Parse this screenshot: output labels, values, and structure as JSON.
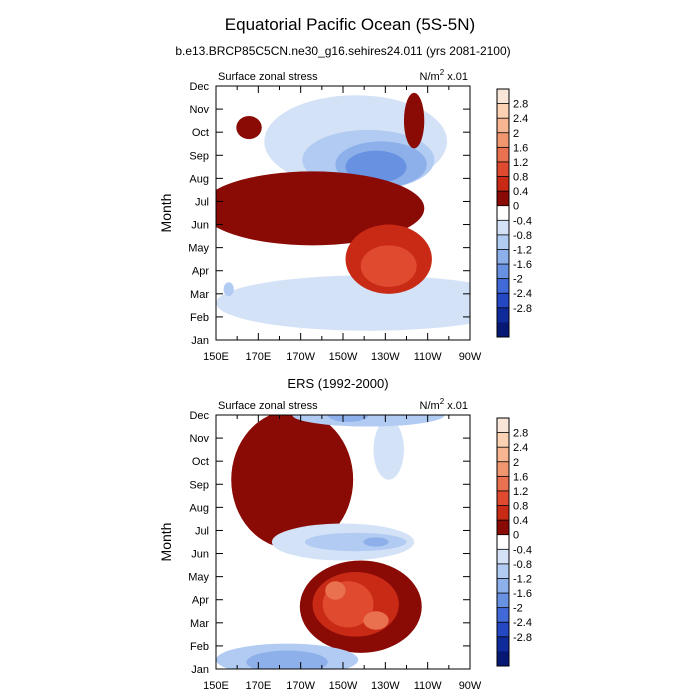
{
  "figure": {
    "title": "Equatorial Pacific Ocean (5S-5N)",
    "subtitle": "b.e13.BRCP85C5CN.ne30_g16.sehires24.011 (yrs 2081-2100)"
  },
  "chart_data": [
    {
      "type": "heatmap",
      "panel_title": "",
      "left_label": "Surface zonal stress",
      "right_label_main": "N/m",
      "right_label_sup": "2",
      "right_label_tail": " x.01",
      "ylabel": "Month",
      "xlabel": "",
      "x_ticks": [
        "150E",
        "170E",
        "170W",
        "150W",
        "130W",
        "110W",
        "90W"
      ],
      "y_ticks": [
        "Jan",
        "Feb",
        "Mar",
        "Apr",
        "May",
        "Jun",
        "Jul",
        "Aug",
        "Sep",
        "Oct",
        "Nov",
        "Dec"
      ],
      "x_range": [
        "150E",
        "90W"
      ],
      "y_range": [
        "Jan",
        "Dec"
      ],
      "features": [
        {
          "kind": "bg",
          "value": 0.2
        },
        {
          "kind": "blob",
          "value": -0.2,
          "cx": 60,
          "cy": 1.6,
          "rx": 60,
          "ry": 1.2
        },
        {
          "kind": "blob",
          "value": -0.2,
          "cx": 55,
          "cy": 8.6,
          "rx": 36,
          "ry": 2.0
        },
        {
          "kind": "blob",
          "value": -0.6,
          "cx": 60,
          "cy": 7.8,
          "rx": 26,
          "ry": 1.3
        },
        {
          "kind": "blob",
          "value": -1.0,
          "cx": 65,
          "cy": 7.6,
          "rx": 18,
          "ry": 1.0
        },
        {
          "kind": "blob",
          "value": -1.4,
          "cx": 63,
          "cy": 7.5,
          "rx": 12,
          "ry": 0.7
        },
        {
          "kind": "blob",
          "value": 0.6,
          "cx": 38,
          "cy": 5.7,
          "rx": 44,
          "ry": 1.6
        },
        {
          "kind": "blob",
          "value": 1.0,
          "cx": 68,
          "cy": 3.5,
          "rx": 17,
          "ry": 1.5
        },
        {
          "kind": "blob",
          "value": 1.4,
          "cx": 68,
          "cy": 3.2,
          "rx": 11,
          "ry": 0.9
        },
        {
          "kind": "blob",
          "value": 0.6,
          "cx": 78,
          "cy": 9.5,
          "rx": 4,
          "ry": 1.2
        },
        {
          "kind": "blob",
          "value": 0.6,
          "cx": 13,
          "cy": 9.2,
          "rx": 5,
          "ry": 0.5
        },
        {
          "kind": "blob",
          "value": -0.6,
          "cx": 5,
          "cy": 2.2,
          "rx": 2,
          "ry": 0.3
        }
      ]
    },
    {
      "type": "heatmap",
      "panel_title": "ERS (1992-2000)",
      "left_label": "Surface zonal stress",
      "right_label_main": "N/m",
      "right_label_sup": "2",
      "right_label_tail": " x.01",
      "ylabel": "Month",
      "xlabel": "",
      "x_ticks": [
        "150E",
        "170E",
        "170W",
        "150W",
        "130W",
        "110W",
        "90W"
      ],
      "y_ticks": [
        "Jan",
        "Feb",
        "Mar",
        "Apr",
        "May",
        "Jun",
        "Jul",
        "Aug",
        "Sep",
        "Oct",
        "Nov",
        "Dec"
      ],
      "x_range": [
        "150E",
        "90W"
      ],
      "y_range": [
        "Jan",
        "Dec"
      ],
      "features": [
        {
          "kind": "bg",
          "value": 0.2
        },
        {
          "kind": "blob",
          "value": 0.6,
          "cx": 30,
          "cy": 8.2,
          "rx": 24,
          "ry": 3.0
        },
        {
          "kind": "blob",
          "value": -0.2,
          "cx": 68,
          "cy": 9.5,
          "rx": 6,
          "ry": 1.3
        },
        {
          "kind": "blob",
          "value": -0.6,
          "cx": 60,
          "cy": 11.0,
          "rx": 30,
          "ry": 0.5
        },
        {
          "kind": "blob",
          "value": -1.0,
          "cx": 52,
          "cy": 11.0,
          "rx": 8,
          "ry": 0.3
        },
        {
          "kind": "blob",
          "value": -0.2,
          "cx": 50,
          "cy": 5.5,
          "rx": 28,
          "ry": 0.8
        },
        {
          "kind": "blob",
          "value": -0.6,
          "cx": 55,
          "cy": 5.5,
          "rx": 20,
          "ry": 0.4
        },
        {
          "kind": "blob",
          "value": -1.0,
          "cx": 63,
          "cy": 5.5,
          "rx": 5,
          "ry": 0.2
        },
        {
          "kind": "blob",
          "value": 0.6,
          "cx": 57,
          "cy": 2.7,
          "rx": 24,
          "ry": 2.0
        },
        {
          "kind": "blob",
          "value": 1.0,
          "cx": 55,
          "cy": 2.8,
          "rx": 17,
          "ry": 1.4
        },
        {
          "kind": "blob",
          "value": 1.4,
          "cx": 52,
          "cy": 2.8,
          "rx": 10,
          "ry": 1.0
        },
        {
          "kind": "blob",
          "value": 1.6,
          "cx": 47,
          "cy": 3.4,
          "rx": 4,
          "ry": 0.4
        },
        {
          "kind": "blob",
          "value": 1.6,
          "cx": 63,
          "cy": 2.1,
          "rx": 5,
          "ry": 0.4
        },
        {
          "kind": "blob",
          "value": -0.6,
          "cx": 28,
          "cy": 0.4,
          "rx": 28,
          "ry": 0.7
        },
        {
          "kind": "blob",
          "value": -1.0,
          "cx": 28,
          "cy": 0.3,
          "rx": 16,
          "ry": 0.5
        }
      ]
    }
  ],
  "colorbar": {
    "labels": [
      "2.8",
      "2.4",
      "2",
      "1.6",
      "1.2",
      "0.8",
      "0.4",
      "0",
      "-0.4",
      "-0.8",
      "-1.2",
      "-1.6",
      "-2",
      "-2.4",
      "-2.8"
    ],
    "colors": [
      "#f9e6d8",
      "#fbd2b4",
      "#f7b591",
      "#f19770",
      "#e97150",
      "#e04b30",
      "#c82a16",
      "#8a0a05",
      "#ffffff",
      "#d4e2f7",
      "#b1cbf2",
      "#8db0eb",
      "#6891e1",
      "#4169d8",
      "#2447c4",
      "#0f2a9a",
      "#061873"
    ]
  }
}
